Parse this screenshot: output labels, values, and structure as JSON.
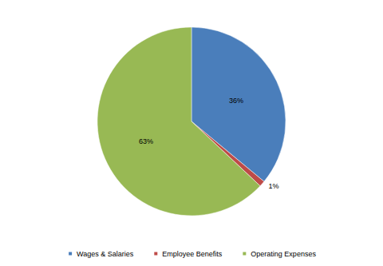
{
  "chart_data": {
    "type": "pie",
    "categories": [
      "Wages & Salaries",
      "Employee Benefits",
      "Operating Expenses"
    ],
    "values": [
      36,
      1,
      63
    ],
    "value_labels": [
      "36%",
      "1%",
      "63%"
    ],
    "colors": [
      "#4a7ebb",
      "#be4b48",
      "#98b954"
    ],
    "data_labels": true,
    "legend": "bottom"
  }
}
